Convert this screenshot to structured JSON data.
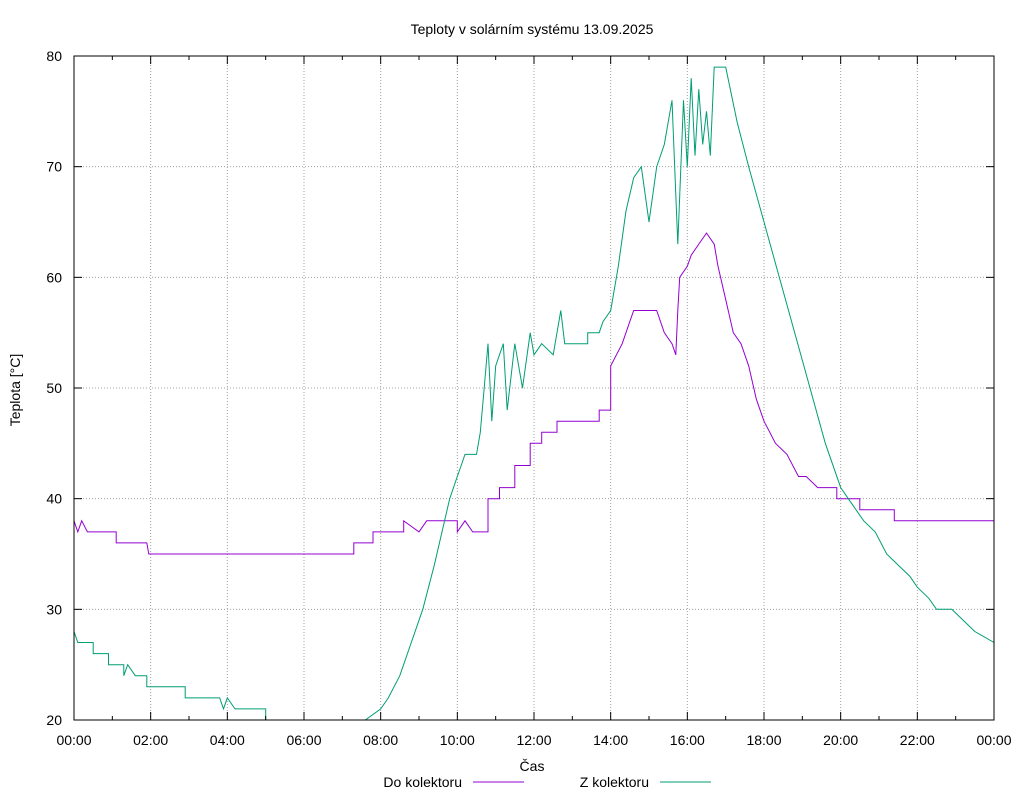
{
  "chart_data": {
    "type": "line",
    "title": "Teploty v solárním systému 13.09.2025",
    "xlabel": "Čas",
    "ylabel": "Teplota [°C]",
    "x_tick_labels": [
      "00:00",
      "02:00",
      "04:00",
      "06:00",
      "08:00",
      "10:00",
      "12:00",
      "14:00",
      "16:00",
      "18:00",
      "20:00",
      "22:00",
      "00:00"
    ],
    "y_ticks": [
      20,
      30,
      40,
      50,
      60,
      70,
      80
    ],
    "xlim_hours": [
      0,
      24
    ],
    "ylim": [
      20,
      80
    ],
    "grid": true,
    "legend_position": "bottom",
    "series": [
      {
        "name": "Do kolektoru",
        "color": "#9400d3",
        "points": [
          [
            0.0,
            38
          ],
          [
            0.1,
            37
          ],
          [
            0.2,
            38
          ],
          [
            0.35,
            37
          ],
          [
            1.1,
            37
          ],
          [
            1.1,
            36
          ],
          [
            1.9,
            36
          ],
          [
            1.95,
            35
          ],
          [
            7.3,
            35
          ],
          [
            7.3,
            36
          ],
          [
            7.8,
            36
          ],
          [
            7.8,
            37
          ],
          [
            8.6,
            37
          ],
          [
            8.6,
            38
          ],
          [
            9.0,
            37
          ],
          [
            9.2,
            38
          ],
          [
            10.0,
            38
          ],
          [
            10.0,
            37
          ],
          [
            10.2,
            38
          ],
          [
            10.4,
            37
          ],
          [
            10.8,
            37
          ],
          [
            10.8,
            40
          ],
          [
            11.1,
            40
          ],
          [
            11.1,
            41
          ],
          [
            11.5,
            41
          ],
          [
            11.5,
            43
          ],
          [
            11.9,
            43
          ],
          [
            11.9,
            45
          ],
          [
            12.2,
            45
          ],
          [
            12.2,
            46
          ],
          [
            12.6,
            46
          ],
          [
            12.6,
            47
          ],
          [
            13.0,
            47
          ],
          [
            13.7,
            47
          ],
          [
            13.7,
            48
          ],
          [
            14.0,
            48
          ],
          [
            14.0,
            52
          ],
          [
            14.3,
            54
          ],
          [
            14.5,
            56
          ],
          [
            14.6,
            57
          ],
          [
            15.0,
            57
          ],
          [
            15.2,
            57
          ],
          [
            15.4,
            55
          ],
          [
            15.6,
            54
          ],
          [
            15.7,
            53
          ],
          [
            15.75,
            57
          ],
          [
            15.8,
            60
          ],
          [
            16.0,
            61
          ],
          [
            16.1,
            62
          ],
          [
            16.3,
            63
          ],
          [
            16.5,
            64
          ],
          [
            16.7,
            63
          ],
          [
            16.8,
            61
          ],
          [
            17.0,
            58
          ],
          [
            17.2,
            55
          ],
          [
            17.4,
            54
          ],
          [
            17.6,
            52
          ],
          [
            17.8,
            49
          ],
          [
            18.0,
            47
          ],
          [
            18.3,
            45
          ],
          [
            18.6,
            44
          ],
          [
            18.9,
            42
          ],
          [
            19.1,
            42
          ],
          [
            19.4,
            41
          ],
          [
            19.9,
            41
          ],
          [
            19.9,
            40
          ],
          [
            20.5,
            40
          ],
          [
            20.5,
            39
          ],
          [
            21.4,
            39
          ],
          [
            21.4,
            38
          ],
          [
            24.0,
            38
          ]
        ]
      },
      {
        "name": "Z kolektoru",
        "color": "#009e73",
        "points": [
          [
            0.0,
            28
          ],
          [
            0.1,
            27
          ],
          [
            0.5,
            27
          ],
          [
            0.5,
            26
          ],
          [
            0.9,
            26
          ],
          [
            0.9,
            25
          ],
          [
            1.3,
            25
          ],
          [
            1.3,
            24
          ],
          [
            1.4,
            25
          ],
          [
            1.6,
            24
          ],
          [
            1.9,
            24
          ],
          [
            1.9,
            23
          ],
          [
            2.9,
            23
          ],
          [
            2.9,
            22
          ],
          [
            3.8,
            22
          ],
          [
            3.9,
            21
          ],
          [
            4.0,
            22
          ],
          [
            4.2,
            21
          ],
          [
            5.0,
            21
          ],
          [
            5.0,
            20
          ],
          [
            7.6,
            20
          ],
          [
            8.0,
            21
          ],
          [
            8.2,
            22
          ],
          [
            8.5,
            24
          ],
          [
            8.8,
            27
          ],
          [
            9.1,
            30
          ],
          [
            9.4,
            34
          ],
          [
            9.6,
            37
          ],
          [
            9.8,
            40
          ],
          [
            10.0,
            42
          ],
          [
            10.1,
            43
          ],
          [
            10.2,
            44
          ],
          [
            10.5,
            44
          ],
          [
            10.6,
            46
          ],
          [
            10.7,
            50
          ],
          [
            10.8,
            54
          ],
          [
            10.9,
            47
          ],
          [
            11.0,
            52
          ],
          [
            11.2,
            54
          ],
          [
            11.3,
            48
          ],
          [
            11.5,
            54
          ],
          [
            11.7,
            50
          ],
          [
            11.9,
            55
          ],
          [
            12.0,
            53
          ],
          [
            12.2,
            54
          ],
          [
            12.5,
            53
          ],
          [
            12.7,
            57
          ],
          [
            12.8,
            54
          ],
          [
            13.4,
            54
          ],
          [
            13.4,
            55
          ],
          [
            13.7,
            55
          ],
          [
            13.8,
            56
          ],
          [
            14.0,
            57
          ],
          [
            14.2,
            61
          ],
          [
            14.4,
            66
          ],
          [
            14.6,
            69
          ],
          [
            14.8,
            70
          ],
          [
            15.0,
            65
          ],
          [
            15.2,
            70
          ],
          [
            15.4,
            72
          ],
          [
            15.6,
            76
          ],
          [
            15.75,
            63
          ],
          [
            15.9,
            76
          ],
          [
            16.0,
            70
          ],
          [
            16.1,
            78
          ],
          [
            16.2,
            71
          ],
          [
            16.3,
            77
          ],
          [
            16.4,
            72
          ],
          [
            16.5,
            75
          ],
          [
            16.6,
            71
          ],
          [
            16.7,
            79
          ],
          [
            17.0,
            79
          ],
          [
            17.3,
            74
          ],
          [
            17.6,
            70
          ],
          [
            18.0,
            65
          ],
          [
            18.4,
            60
          ],
          [
            18.8,
            55
          ],
          [
            19.2,
            50
          ],
          [
            19.6,
            45
          ],
          [
            20.0,
            41
          ],
          [
            20.2,
            40
          ],
          [
            20.6,
            38
          ],
          [
            20.9,
            37
          ],
          [
            21.2,
            35
          ],
          [
            21.5,
            34
          ],
          [
            21.8,
            33
          ],
          [
            22.0,
            32
          ],
          [
            22.3,
            31
          ],
          [
            22.5,
            30
          ],
          [
            22.9,
            30
          ],
          [
            23.2,
            29
          ],
          [
            23.5,
            28
          ],
          [
            24.0,
            27
          ]
        ]
      }
    ]
  }
}
